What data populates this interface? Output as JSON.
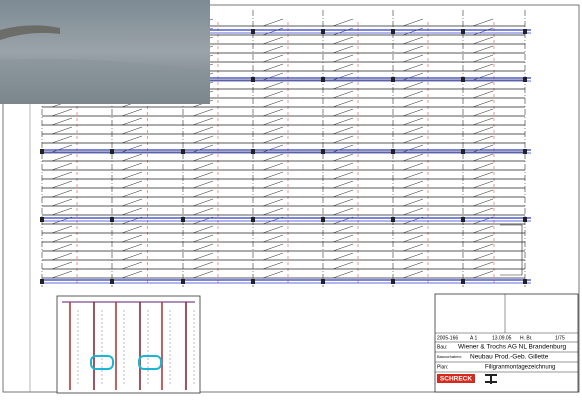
{
  "title_block": {
    "number": "2005-166",
    "sheet": "A 1",
    "date": "13.09.05",
    "drawn_by": "H. Br.",
    "scale": "1/75",
    "client_label": "Bau:",
    "client": "Wiener & Trochs AG NL Brandenburg",
    "project_label": "Bauvorhaben:",
    "project": "Neubau Prod.-Geb. Gillette",
    "plan_label": "Plan:",
    "plan": "Filigranmontagezeichnung",
    "company": "SCHRECK"
  }
}
